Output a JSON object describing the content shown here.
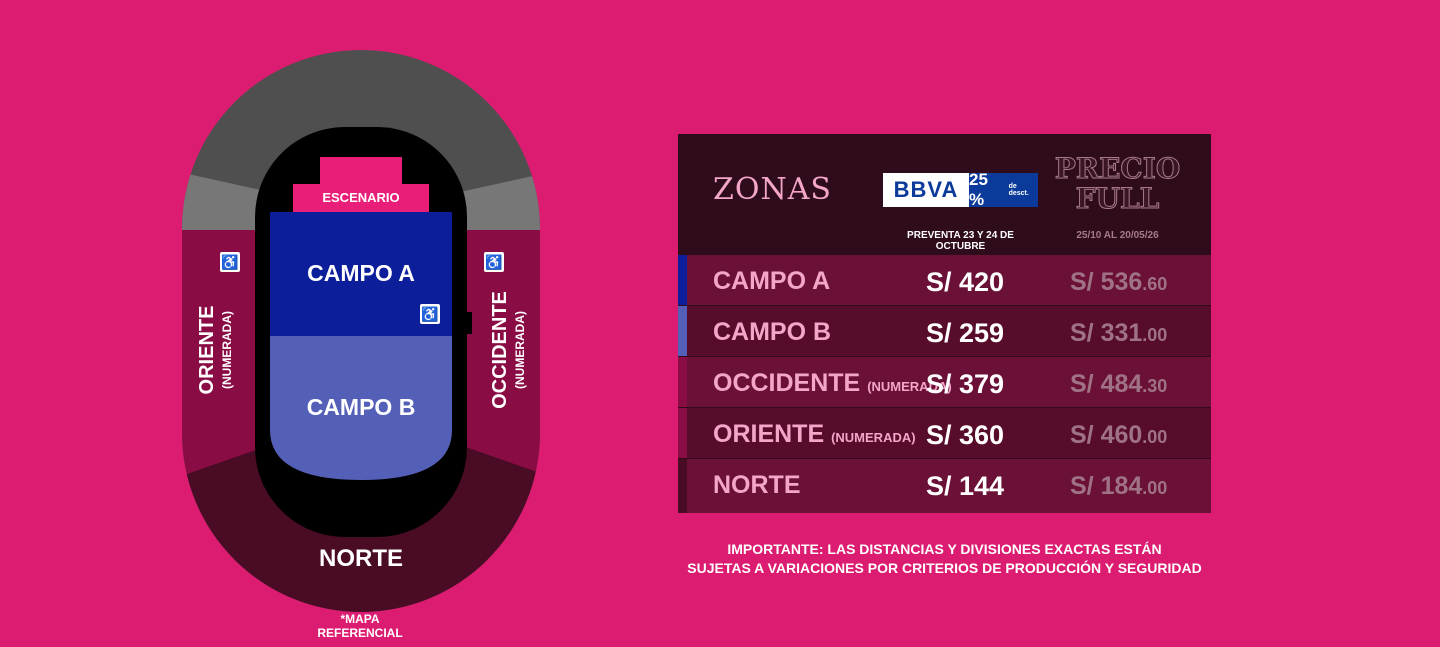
{
  "map": {
    "stage_label": "ESCENARIO",
    "campo_a_label": "CAMPO A",
    "campo_b_label": "CAMPO B",
    "oriente_label": "ORIENTE",
    "oriente_sub": "(NUMERADA)",
    "occidente_label": "OCCIDENTE",
    "occidente_sub": "(NUMERADA)",
    "norte_label": "NORTE",
    "footnote": "*MAPA REFERENCIAL",
    "accessibility_icon": "wheelchair-icon"
  },
  "colors": {
    "background": "#dc1c70",
    "campo_a": "#0c1e9a",
    "campo_b": "#5460b8",
    "side_zones": "#8a0c45",
    "norte": "#4a0b25",
    "upper_ring": "#4f4f4f",
    "stage": "#e91e78"
  },
  "table": {
    "zones_header": "ZONAS",
    "bbva_logo": "BBVA",
    "bbva_discount": "25 %",
    "bbva_discount_sub": "de desct.",
    "preventa_label": "PREVENTA 23 Y 24 DE OCTUBRE",
    "full_header": "PRECIO FULL",
    "full_dates": "25/10 AL 20/05/26",
    "rows": [
      {
        "zone": "CAMPO A",
        "sub": "",
        "presale": "S/ 420",
        "full_main": "S/ 536",
        "full_cents": ".60",
        "color": "#0c1e9a"
      },
      {
        "zone": "CAMPO B",
        "sub": "",
        "presale": "S/ 259",
        "full_main": "S/ 331",
        "full_cents": ".00",
        "color": "#5460b8"
      },
      {
        "zone": "OCCIDENTE",
        "sub": "(NUMERADA)",
        "presale": "S/ 379",
        "full_main": "S/ 484",
        "full_cents": ".30",
        "color": "#8a0c45"
      },
      {
        "zone": "ORIENTE",
        "sub": "(NUMERADA)",
        "presale": "S/ 360",
        "full_main": "S/ 460",
        "full_cents": ".00",
        "color": "#8a0c45"
      },
      {
        "zone": "NORTE",
        "sub": "",
        "presale": "S/ 144",
        "full_main": "S/ 184",
        "full_cents": ".00",
        "color": "#4a0b25"
      }
    ]
  },
  "important_line1": "IMPORTANTE: LAS DISTANCIAS Y DIVISIONES EXACTAS ESTÁN",
  "important_line2": "SUJETAS A VARIACIONES POR CRITERIOS DE PRODUCCIÓN Y SEGURIDAD"
}
